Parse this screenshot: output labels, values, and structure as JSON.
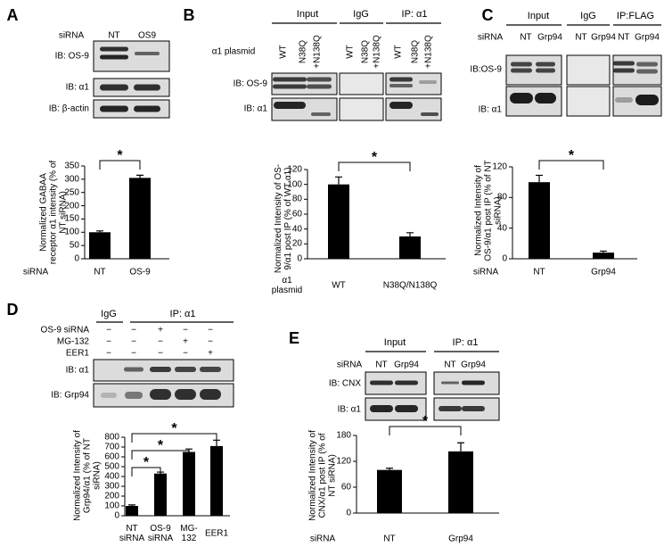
{
  "figure": {
    "panels": [
      {
        "label": "A",
        "header": "siRNA",
        "lanes": [
          "NT",
          "OS9"
        ],
        "rows": [
          "IB: OS-9",
          "IB: α1",
          "IB: β-actin"
        ]
      },
      {
        "label": "B",
        "groups": [
          "Input",
          "IgG",
          "IP: α1"
        ],
        "header": "α1 plasmid",
        "lanes": [
          "WT",
          "N38Q",
          "+N138Q",
          "WT",
          "N38Q",
          "+N138Q",
          "WT",
          "N38Q",
          "+N138Q"
        ],
        "rows": [
          "IB: OS-9",
          "IB: α1"
        ]
      },
      {
        "label": "C",
        "groups": [
          "Input",
          "IgG",
          "IP:FLAG"
        ],
        "header": "siRNA",
        "lanes": [
          "NT",
          "Grp94",
          "NT",
          "Grp94",
          "NT",
          "Grp94"
        ],
        "rows": [
          "IB:OS-9",
          "IB: α1"
        ]
      },
      {
        "label": "D",
        "groups": [
          "IgG",
          "IP: α1"
        ],
        "treatments": [
          {
            "name": "OS-9 siRNA",
            "signs": [
              "−",
              "−",
              "+",
              "−",
              "−"
            ]
          },
          {
            "name": "MG-132",
            "signs": [
              "−",
              "−",
              "−",
              "+",
              "−"
            ]
          },
          {
            "name": "EER1",
            "signs": [
              "−",
              "−",
              "−",
              "−",
              "+"
            ]
          }
        ],
        "rows": [
          "IB: α1",
          "IB: Grp94"
        ]
      },
      {
        "label": "E",
        "groups": [
          "Input",
          "IP: α1"
        ],
        "header": "siRNA",
        "lanes": [
          "NT",
          "Grp94",
          "NT",
          "Grp94"
        ],
        "rows": [
          "IB: CNX",
          "IB: α1"
        ]
      }
    ]
  },
  "chart_data": [
    {
      "type": "bar",
      "ylabel": "Normalized GABAA receptor α1 intensity (% of NT siRNA)",
      "x_label": "siRNA",
      "categories": [
        "NT",
        "OS-9"
      ],
      "values": [
        100,
        305
      ],
      "errors": [
        5,
        10
      ],
      "color": "#000000",
      "ylim": [
        0,
        350
      ],
      "yticks": [
        0,
        50,
        100,
        150,
        200,
        250,
        300,
        350
      ],
      "annotations": [
        "*"
      ]
    },
    {
      "type": "bar",
      "ylabel": "Normalized Intensity of OS-9/α1 post IP (% of WT α1)",
      "x_label": "α1 plasmid",
      "categories": [
        "WT",
        "N38Q/N138Q"
      ],
      "values": [
        100,
        30
      ],
      "errors": [
        10,
        5
      ],
      "color": "#000000",
      "ylim": [
        0,
        120
      ],
      "yticks": [
        0,
        20,
        40,
        60,
        80,
        100,
        120
      ],
      "annotations": [
        "*"
      ]
    },
    {
      "type": "bar",
      "ylabel": "Normalized Intensity of OS-9/α1 post IP (% of NT siRNA)",
      "x_label": "siRNA",
      "categories": [
        "NT",
        "Grp94"
      ],
      "values": [
        100,
        8
      ],
      "errors": [
        9,
        2
      ],
      "color": "#000000",
      "ylim": [
        0,
        120
      ],
      "yticks": [
        0,
        40,
        80,
        120
      ],
      "annotations": [
        "*"
      ]
    },
    {
      "type": "bar",
      "ylabel": "Normalized Intensity of Grp94/α1 (% of NT siRNA)",
      "categories": [
        "NT siRNA",
        "OS-9 siRNA",
        "MG-132",
        "EER1"
      ],
      "values": [
        100,
        430,
        650,
        710
      ],
      "errors": [
        10,
        15,
        30,
        60
      ],
      "color": "#000000",
      "ylim": [
        0,
        800
      ],
      "yticks": [
        0,
        100,
        200,
        300,
        400,
        500,
        600,
        700,
        800
      ],
      "annotations": [
        "*",
        "*",
        "*"
      ]
    },
    {
      "type": "bar",
      "ylabel": "Normalized Intensity of CNX/α1 post IP (% of NT siRNA)",
      "x_label": "siRNA",
      "categories": [
        "NT",
        "Grp94"
      ],
      "values": [
        100,
        143
      ],
      "errors": [
        4,
        20
      ],
      "color": "#000000",
      "ylim": [
        0,
        180
      ],
      "yticks": [
        0,
        60,
        120,
        180
      ],
      "annotations": [
        "*"
      ]
    }
  ]
}
